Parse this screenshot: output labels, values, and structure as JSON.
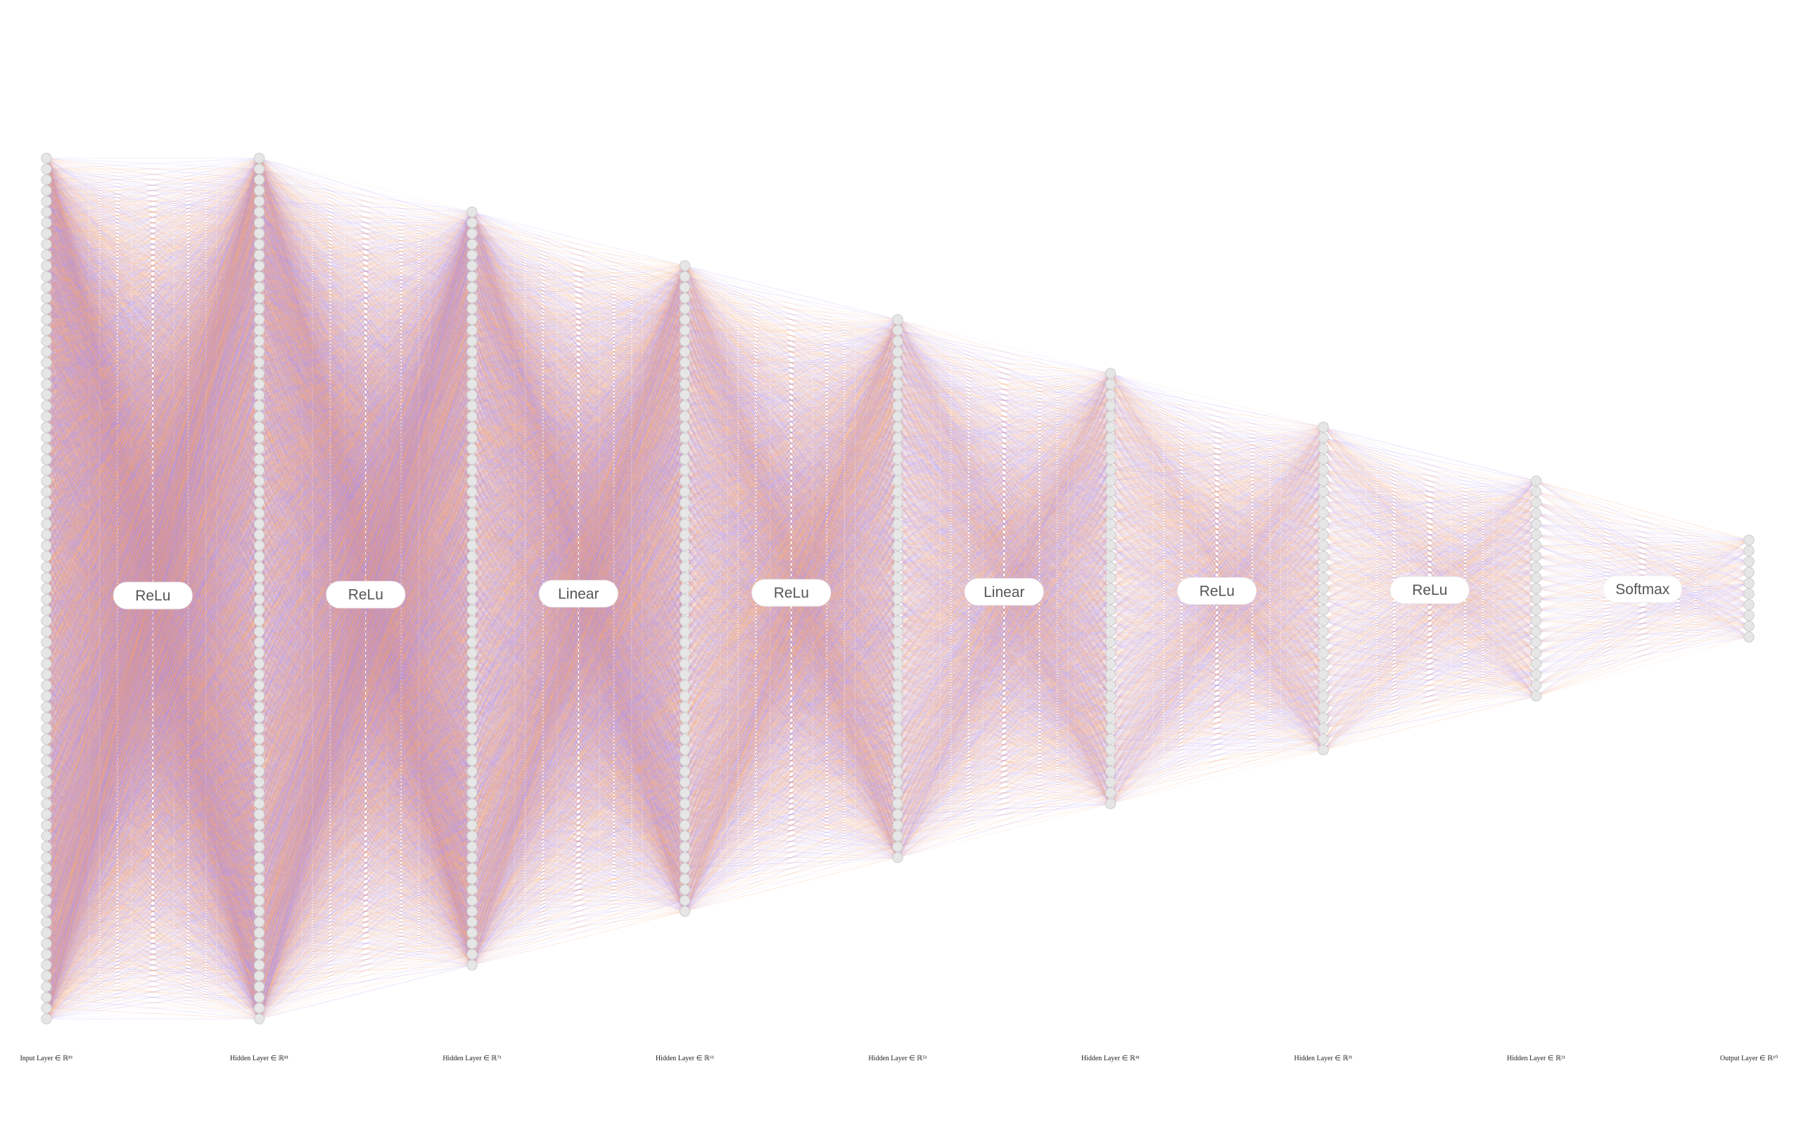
{
  "layers": [
    {
      "label": "Input Layer ∈ ℝ⁸¹",
      "neurons": 81
    },
    {
      "label": "Hidden Layer ∈ ℝ⁸¹",
      "neurons": 81
    },
    {
      "label": "Hidden Layer ∈ ℝ⁷¹",
      "neurons": 71
    },
    {
      "label": "Hidden Layer ∈ ℝ⁶¹",
      "neurons": 61
    },
    {
      "label": "Hidden Layer ∈ ℝ⁵¹",
      "neurons": 51
    },
    {
      "label": "Hidden Layer ∈ ℝ⁴¹",
      "neurons": 41
    },
    {
      "label": "Hidden Layer ∈ ℝ³¹",
      "neurons": 31
    },
    {
      "label": "Hidden Layer ∈ ℝ²¹",
      "neurons": 21
    },
    {
      "label": "Output Layer ∈ ℝ¹⁰",
      "neurons": 10
    }
  ],
  "activations": [
    "ReLu",
    "ReLu",
    "Linear",
    "ReLu",
    "Linear",
    "ReLu",
    "ReLu",
    "Softmax"
  ],
  "colors": {
    "edge_warm": "#f4a06a",
    "edge_cool": "#a98df2",
    "neuron_fill": "#e6e6e6",
    "neuron_stroke": "#cccccc",
    "pill_fill": "#ffffff"
  }
}
